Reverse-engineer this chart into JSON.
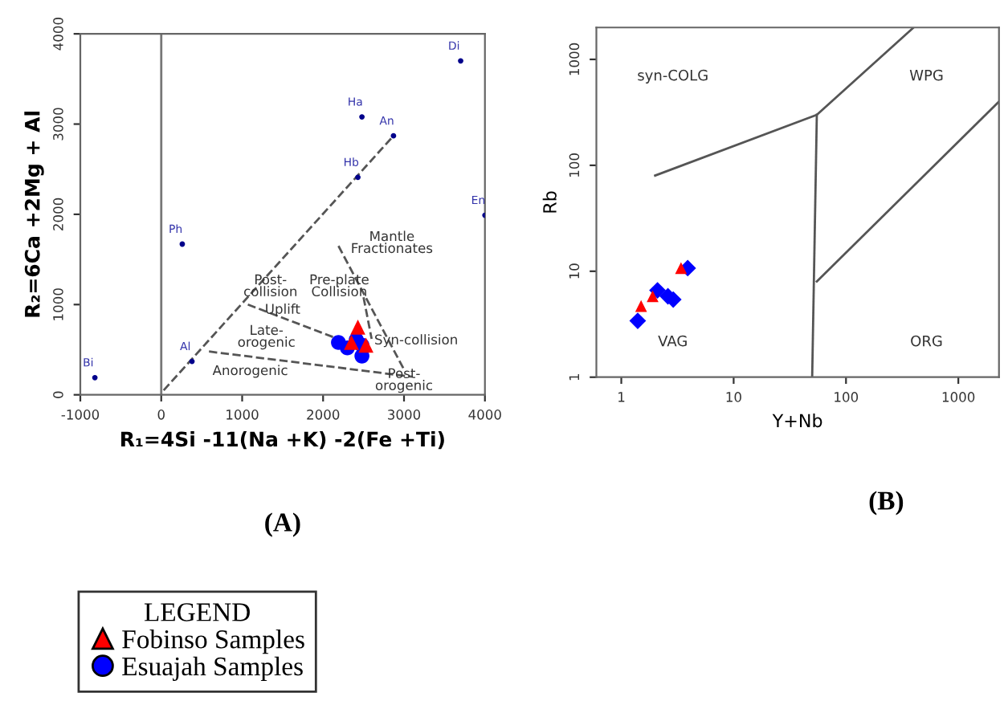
{
  "chart_data": [
    {
      "type": "scatter",
      "title": "(A)",
      "xlabel": "R₁=4Si -11(Na +K) -2(Fe +Ti)",
      "ylabel": "R₂=6Ca +2Mg + Al",
      "legend_title": "LEGEND",
      "legend": "bottom left",
      "xlim": [
        -1000,
        4000
      ],
      "ylim": [
        0,
        4000
      ],
      "xticks": [
        -1000,
        0,
        1000,
        2000,
        3000,
        4000
      ],
      "yticks": [
        0,
        1000,
        2000,
        3000,
        4000
      ],
      "ref_lines": [
        {
          "axis": "x",
          "value": 0,
          "color": "#777777",
          "line_style": "solid"
        }
      ],
      "series": [
        {
          "type": "line",
          "color": "#555555",
          "line_style": "dashed",
          "x": [
            30,
            2850
          ],
          "values": [
            50,
            2850
          ]
        },
        {
          "type": "line",
          "color": "#555555",
          "line_style": "dashed",
          "x": [
            1070,
            2300
          ],
          "values": [
            1000,
            580
          ]
        },
        {
          "type": "line",
          "color": "#555555",
          "line_style": "dashed",
          "x": [
            590,
            3100
          ],
          "values": [
            480,
            200
          ]
        },
        {
          "type": "line",
          "color": "#555555",
          "line_style": "dashed",
          "x": [
            2190,
            3000
          ],
          "values": [
            1650,
            280
          ]
        },
        {
          "type": "line",
          "color": "#555555",
          "line_style": "dashed",
          "x": [
            2500,
            2600
          ],
          "values": [
            1080,
            620
          ]
        },
        {
          "type": "scatter",
          "color": "#00008b",
          "marker": "circle",
          "x": [
            3700,
            2480,
            2870,
            2430,
            4000,
            260,
            380,
            -820
          ],
          "values": [
            3700,
            3080,
            2870,
            2410,
            1990,
            1670,
            370,
            190
          ]
        },
        {
          "type": "scatter",
          "name": "Fobinso Samples",
          "color": "#ff0000",
          "marker": "triangle",
          "x": [
            2430,
            2350,
            2530
          ],
          "values": [
            750,
            580,
            550
          ]
        },
        {
          "type": "scatter",
          "name": "Esuajah Samples",
          "color": "#0000ff",
          "marker": "circle",
          "x": [
            2190,
            2300,
            2410,
            2480,
            2480
          ],
          "values": [
            580,
            520,
            610,
            550,
            430
          ]
        }
      ],
      "annotations": [
        {
          "text": "Di",
          "x": 3700,
          "y": 3700
        },
        {
          "text": "Ha",
          "x": 2480,
          "y": 3080
        },
        {
          "text": "An",
          "x": 2870,
          "y": 2870
        },
        {
          "text": "Hb",
          "x": 2430,
          "y": 2410
        },
        {
          "text": "En",
          "x": 4000,
          "y": 1990
        },
        {
          "text": "Ph",
          "x": 260,
          "y": 1670
        },
        {
          "text": "Al",
          "x": 380,
          "y": 370
        },
        {
          "text": "Bi",
          "x": -820,
          "y": 190
        },
        "Mantle\nFractionates",
        "Post-\ncollision",
        "Uplift",
        "Pre-plate\nCollision",
        "Late-\norogenic",
        "Syn-collision",
        "Anorogenic",
        "Post-\norogenic"
      ]
    },
    {
      "type": "scatter",
      "title": "(B)",
      "xlabel": "Y+Nb",
      "ylabel": "Rb",
      "log": "xy",
      "xlim": [
        0.6,
        2300
      ],
      "ylim": [
        1,
        2000
      ],
      "xticks": [
        1,
        10,
        100,
        1000
      ],
      "yticks": [
        1,
        10,
        100,
        1000
      ],
      "series": [
        {
          "type": "line",
          "color": "#555555",
          "line_style": "solid",
          "x": [
            2,
            55,
            400
          ],
          "values": [
            80,
            300,
            2000
          ]
        },
        {
          "type": "line",
          "color": "#555555",
          "line_style": "solid",
          "x": [
            55,
            50
          ],
          "values": [
            300,
            1
          ]
        },
        {
          "type": "line",
          "color": "#555555",
          "line_style": "solid",
          "x": [
            55,
            2300
          ],
          "values": [
            8,
            400
          ]
        },
        {
          "type": "scatter",
          "color": "#ff0000",
          "marker": "triangle",
          "x": [
            1.5,
            1.9,
            3.4
          ],
          "values": [
            4.7,
            5.8,
            10.7
          ]
        },
        {
          "type": "scatter",
          "color": "#0000ff",
          "marker": "diamond",
          "x": [
            1.4,
            2.1,
            2.6,
            2.9,
            3.9
          ],
          "values": [
            3.4,
            6.6,
            5.8,
            5.4,
            10.7
          ]
        }
      ],
      "annotations": [
        "syn-COLG",
        "WPG",
        "VAG",
        "ORG"
      ]
    }
  ]
}
